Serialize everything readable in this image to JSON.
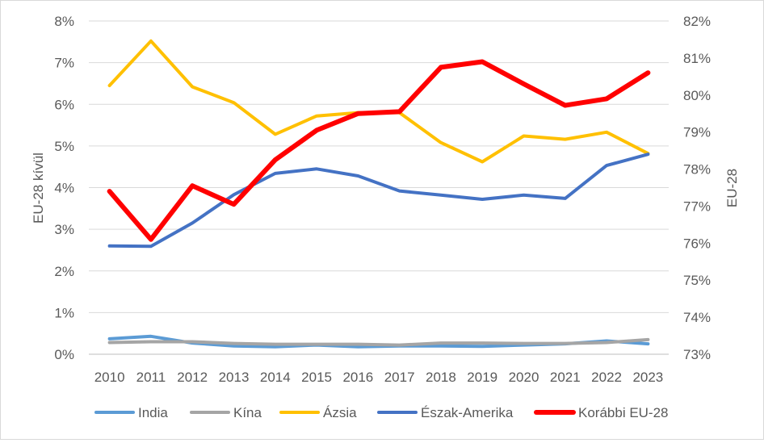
{
  "chart_data": {
    "type": "line",
    "x": [
      "2010",
      "2011",
      "2012",
      "2013",
      "2014",
      "2015",
      "2016",
      "2017",
      "2018",
      "2019",
      "2020",
      "2021",
      "2022",
      "2023"
    ],
    "left_axis": {
      "title": "EU-28 kívül",
      "ylim": [
        0,
        8
      ],
      "ticks": [
        0,
        1,
        2,
        3,
        4,
        5,
        6,
        7,
        8
      ],
      "tick_labels": [
        "0%",
        "1%",
        "2%",
        "3%",
        "4%",
        "5%",
        "6%",
        "7%",
        "8%"
      ]
    },
    "right_axis": {
      "title": "EU-28",
      "ylim": [
        73,
        82
      ],
      "ticks": [
        73,
        74,
        75,
        76,
        77,
        78,
        79,
        80,
        81,
        82
      ],
      "tick_labels": [
        "73%",
        "74%",
        "75%",
        "76%",
        "77%",
        "78%",
        "79%",
        "80%",
        "81%",
        "82%"
      ]
    },
    "grid": "horizontal",
    "legend_position": "bottom",
    "series": [
      {
        "name": "India",
        "color": "#5b9bd5",
        "axis": "left",
        "stroke": 4,
        "values": [
          0.37,
          0.43,
          0.27,
          0.2,
          0.18,
          0.22,
          0.18,
          0.2,
          0.2,
          0.19,
          0.22,
          0.25,
          0.32,
          0.25
        ]
      },
      {
        "name": "Kína",
        "color": "#a5a5a5",
        "axis": "left",
        "stroke": 4,
        "values": [
          0.28,
          0.3,
          0.3,
          0.26,
          0.24,
          0.24,
          0.24,
          0.22,
          0.27,
          0.27,
          0.26,
          0.26,
          0.28,
          0.35
        ]
      },
      {
        "name": "Ázsia",
        "color": "#ffc000",
        "axis": "left",
        "stroke": 4,
        "values": [
          6.45,
          7.52,
          6.42,
          6.04,
          5.28,
          5.72,
          5.8,
          5.8,
          5.08,
          4.62,
          5.24,
          5.16,
          5.33,
          4.82
        ]
      },
      {
        "name": "Észak-Amerika",
        "color": "#4472c4",
        "axis": "left",
        "stroke": 4,
        "values": [
          2.6,
          2.59,
          3.15,
          3.83,
          4.34,
          4.45,
          4.28,
          3.92,
          3.82,
          3.72,
          3.82,
          3.74,
          4.53,
          4.8
        ]
      },
      {
        "name": "Korábbi EU-28",
        "color": "#ff0000",
        "axis": "right",
        "stroke": 6,
        "values": [
          77.4,
          76.1,
          77.55,
          77.05,
          78.25,
          79.05,
          79.5,
          79.55,
          80.75,
          80.9,
          80.3,
          79.72,
          79.9,
          80.6
        ]
      }
    ]
  }
}
